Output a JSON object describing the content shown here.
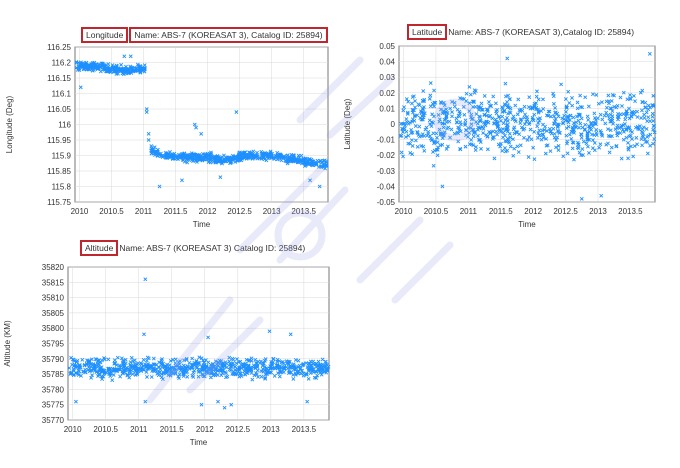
{
  "colors": {
    "marker": "#1e90ff",
    "title_box": "#c0262d",
    "watermark": "#9aa0e8"
  },
  "chart_data": [
    {
      "type": "scatter",
      "title_prefix": "Longitude",
      "title_name": "Name: ABS-7 (KOREASAT 3), Catalog ID: 25894)",
      "xlabel": "Time",
      "ylabel": "Longitude (Deg)",
      "xlim": [
        2009.93,
        2013.88
      ],
      "ylim": [
        115.75,
        116.25
      ],
      "xticks": [
        2010,
        2010.5,
        2011,
        2011.5,
        2012,
        2012.5,
        2013,
        2013.5
      ],
      "xtick_labels": [
        "2010",
        "2010.5",
        "2011",
        "2011.5",
        "2012",
        "2012.5",
        "2013",
        "2013.5"
      ],
      "yticks": [
        115.75,
        115.8,
        115.85,
        115.9,
        115.95,
        116,
        116.05,
        116.1,
        116.15,
        116.2,
        116.25
      ],
      "ytick_labels": [
        "115.75",
        "115.8",
        "115.85",
        "115.9",
        "115.95",
        "116",
        "116.05",
        "116.1",
        "116.15",
        "116.2",
        "116.25"
      ],
      "grid": true,
      "marker": "x",
      "trend_segments": [
        {
          "x": [
            2009.95,
            2010.3,
            2010.7,
            2011.02
          ],
          "y": [
            116.19,
            116.185,
            116.175,
            116.18
          ],
          "spread": 0.02,
          "count": 260
        },
        {
          "x": [
            2011.1,
            2011.3,
            2011.6,
            2012.0,
            2012.3,
            2012.6,
            2013.0,
            2013.4,
            2013.88
          ],
          "y": [
            115.92,
            115.9,
            115.895,
            115.895,
            115.885,
            115.9,
            115.9,
            115.885,
            115.87
          ],
          "spread": 0.02,
          "count": 560
        }
      ],
      "outliers": [
        {
          "x": 2011.05,
          "y": 116.05
        },
        {
          "x": 2011.05,
          "y": 116.04
        },
        {
          "x": 2011.08,
          "y": 115.97
        },
        {
          "x": 2011.08,
          "y": 115.95
        },
        {
          "x": 2011.8,
          "y": 116.0
        },
        {
          "x": 2011.82,
          "y": 115.99
        },
        {
          "x": 2011.9,
          "y": 115.97
        },
        {
          "x": 2012.45,
          "y": 116.04
        },
        {
          "x": 2011.25,
          "y": 115.8
        },
        {
          "x": 2012.2,
          "y": 115.83
        },
        {
          "x": 2011.6,
          "y": 115.82
        },
        {
          "x": 2013.6,
          "y": 115.82
        },
        {
          "x": 2013.75,
          "y": 115.8
        },
        {
          "x": 2010.7,
          "y": 116.22
        },
        {
          "x": 2010.8,
          "y": 116.22
        },
        {
          "x": 2010.02,
          "y": 116.12
        }
      ]
    },
    {
      "type": "scatter",
      "title_prefix": "Latitude",
      "title_name": "Name: ABS-7 (KOREASAT 3),Catalog ID: 25894)",
      "xlabel": "Time",
      "ylabel": "Latitude (Deg)",
      "xlim": [
        2009.93,
        2013.88
      ],
      "ylim": [
        -0.05,
        0.05
      ],
      "xticks": [
        2010,
        2010.5,
        2011,
        2011.5,
        2012,
        2012.5,
        2013,
        2013.5
      ],
      "xtick_labels": [
        "2010",
        "2010.5",
        "2011",
        "2011.5",
        "2012",
        "2012.5",
        "2013",
        "2013.5"
      ],
      "yticks": [
        -0.05,
        -0.04,
        -0.03,
        -0.02,
        -0.01,
        0,
        0.01,
        0.02,
        0.03,
        0.04,
        0.05
      ],
      "ytick_labels": [
        "-0.05",
        "-0.04",
        "-0.03",
        "-0.02",
        "-0.01",
        "0",
        "0.01",
        "0.02",
        "0.03",
        "0.04",
        "0.05"
      ],
      "grid": true,
      "marker": "x",
      "trend_segments": [
        {
          "x": [
            2009.95,
            2013.88
          ],
          "y": [
            0.0,
            0.0
          ],
          "spread": 0.03,
          "count": 800
        }
      ],
      "outliers": [
        {
          "x": 2010.6,
          "y": -0.04
        },
        {
          "x": 2012.75,
          "y": -0.048
        },
        {
          "x": 2013.05,
          "y": -0.046
        },
        {
          "x": 2013.8,
          "y": 0.045
        },
        {
          "x": 2011.6,
          "y": 0.042
        }
      ]
    },
    {
      "type": "scatter",
      "title_prefix": "Altitude",
      "title_name": "Name: ABS-7 (KOREASAT 3) Catalog ID: 25894)",
      "xlabel": "Time",
      "ylabel": "Altitude (KM)",
      "xlim": [
        2009.93,
        2013.88
      ],
      "ylim": [
        35770,
        35820
      ],
      "xticks": [
        2010,
        2010.5,
        2011,
        2011.5,
        2012,
        2012.5,
        2013,
        2013.5
      ],
      "xtick_labels": [
        "2010",
        "2010.5",
        "2011",
        "2011.5",
        "2012",
        "2012.5",
        "2013",
        "2013.5"
      ],
      "yticks": [
        35770,
        35775,
        35780,
        35785,
        35790,
        35795,
        35800,
        35805,
        35810,
        35815,
        35820
      ],
      "ytick_labels": [
        "35770",
        "35775",
        "35780",
        "35785",
        "35790",
        "35795",
        "35800",
        "35805",
        "35810",
        "35815",
        "35820"
      ],
      "grid": true,
      "marker": "x",
      "trend_segments": [
        {
          "x": [
            2009.95,
            2013.88
          ],
          "y": [
            35787,
            35787
          ],
          "spread": 4.5,
          "count": 780
        }
      ],
      "outliers": [
        {
          "x": 2011.1,
          "y": 35816
        },
        {
          "x": 2011.08,
          "y": 35798
        },
        {
          "x": 2012.05,
          "y": 35797
        },
        {
          "x": 2012.98,
          "y": 35799
        },
        {
          "x": 2013.3,
          "y": 35798
        },
        {
          "x": 2010.05,
          "y": 35776
        },
        {
          "x": 2011.95,
          "y": 35775
        },
        {
          "x": 2012.4,
          "y": 35775
        },
        {
          "x": 2012.3,
          "y": 35774
        },
        {
          "x": 2013.55,
          "y": 35776
        },
        {
          "x": 2011.1,
          "y": 35776
        },
        {
          "x": 2012.2,
          "y": 35776
        }
      ]
    }
  ]
}
